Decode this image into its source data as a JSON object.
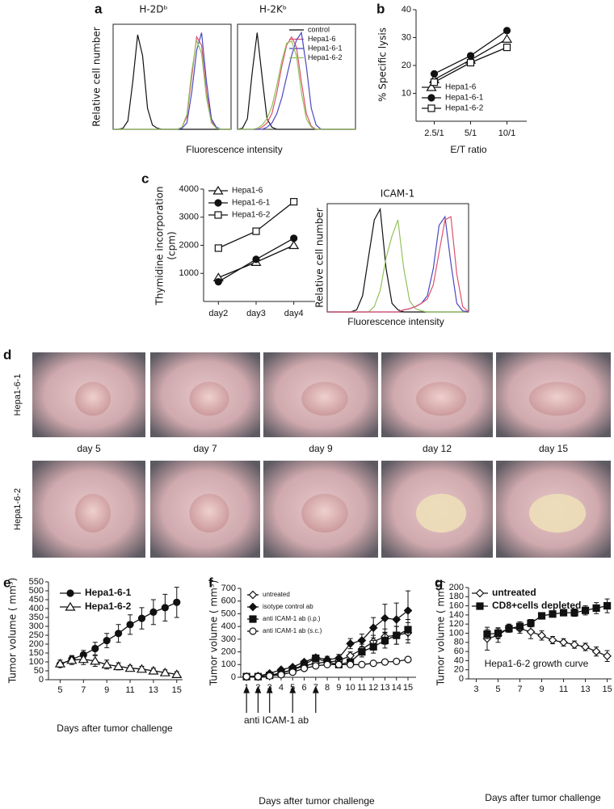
{
  "panel_labels": [
    "a",
    "b",
    "c",
    "d",
    "e",
    "f",
    "g"
  ],
  "photo_panel": {
    "row_labels": [
      "Hepa1-6-1",
      "Hepa1-6-2"
    ],
    "day_labels": [
      "day 5",
      "day 7",
      "day 9",
      "day 12",
      "day 15"
    ]
  },
  "chart_data": [
    {
      "type": "line",
      "title": "H-2Dᵇ",
      "ylabel": "Relative cell number",
      "xlabel": "Fluorescence intensity",
      "x": [
        0,
        1,
        2,
        3,
        4,
        5,
        6,
        7,
        8,
        9,
        10,
        11,
        12,
        13,
        14,
        15,
        16,
        17,
        18,
        19,
        20,
        21,
        22,
        23,
        24
      ],
      "xlim": [
        0,
        24
      ],
      "ylim": [
        0,
        100
      ],
      "series": [
        {
          "color": "#111111",
          "values": [
            0,
            0,
            1,
            8,
            45,
            90,
            70,
            20,
            4,
            1,
            0,
            0,
            0,
            0,
            0,
            0,
            0,
            0,
            0,
            0,
            0,
            0,
            0,
            0,
            0
          ]
        },
        {
          "color": "#e0506e",
          "values": [
            0,
            0,
            0,
            0,
            0,
            0,
            0,
            0,
            0,
            0,
            0,
            0,
            0,
            0,
            2,
            12,
            50,
            88,
            80,
            35,
            8,
            1,
            0,
            0,
            0
          ]
        },
        {
          "color": "#4a48c0",
          "values": [
            0,
            0,
            0,
            0,
            0,
            0,
            0,
            0,
            0,
            0,
            0,
            0,
            0,
            0,
            1,
            6,
            35,
            75,
            92,
            45,
            10,
            2,
            0,
            0,
            0
          ]
        },
        {
          "color": "#92c25a",
          "values": [
            0,
            0,
            0,
            0,
            0,
            0,
            0,
            0,
            0,
            0,
            0,
            0,
            0,
            0,
            2,
            14,
            55,
            85,
            72,
            30,
            6,
            1,
            0,
            0,
            0
          ]
        }
      ]
    },
    {
      "type": "line",
      "title": "H-2Kᵇ",
      "x": [
        0,
        1,
        2,
        3,
        4,
        5,
        6,
        7,
        8,
        9,
        10,
        11,
        12,
        13,
        14,
        15,
        16,
        17,
        18,
        19,
        20,
        21,
        22,
        23,
        24
      ],
      "xlim": [
        0,
        24
      ],
      "ylim": [
        0,
        100
      ],
      "series": [
        {
          "name": "control",
          "color": "#111111",
          "values": [
            0,
            1,
            10,
            55,
            92,
            50,
            10,
            2,
            0,
            0,
            0,
            0,
            0,
            0,
            0,
            0,
            0,
            0,
            0,
            0,
            0,
            0,
            0,
            0,
            0
          ]
        },
        {
          "name": "Hepa1-6",
          "color": "#e0506e",
          "values": [
            0,
            0,
            0,
            0,
            0,
            2,
            6,
            15,
            35,
            60,
            80,
            88,
            78,
            45,
            15,
            3,
            0,
            0,
            0,
            0,
            0,
            0,
            0,
            0,
            0
          ]
        },
        {
          "name": "Hepa1-6-1",
          "color": "#4a48c0",
          "values": [
            0,
            0,
            0,
            0,
            0,
            0,
            2,
            6,
            15,
            30,
            50,
            70,
            85,
            92,
            60,
            20,
            4,
            0,
            0,
            0,
            0,
            0,
            0,
            0,
            0
          ]
        },
        {
          "name": "Hepa1-6-2",
          "color": "#92c25a",
          "values": [
            0,
            0,
            0,
            0,
            1,
            4,
            10,
            22,
            42,
            65,
            82,
            84,
            70,
            35,
            10,
            2,
            0,
            0,
            0,
            0,
            0,
            0,
            0,
            0,
            0
          ]
        }
      ]
    },
    {
      "type": "line",
      "ylabel": "% Specific lysis",
      "xlabel": "E/T ratio",
      "categories": [
        "2.5/1",
        "5/1",
        "10/1"
      ],
      "ylim": [
        0,
        40
      ],
      "yticks": [
        10,
        20,
        30,
        40
      ],
      "series": [
        {
          "name": "Hepa1-6",
          "color": "#111111",
          "marker": "triangle-open",
          "values": [
            15,
            22,
            29.5
          ]
        },
        {
          "name": "Hepa1-6-1",
          "color": "#111111",
          "marker": "circle-filled",
          "values": [
            17,
            23.5,
            32.5
          ]
        },
        {
          "name": "Hepa1-6-2",
          "color": "#111111",
          "marker": "square-open",
          "values": [
            14,
            21,
            26.5
          ]
        }
      ]
    },
    {
      "type": "line",
      "ylabel": [
        "Thymidine incorporation",
        "(cpm)"
      ],
      "categories": [
        "day2",
        "day3",
        "day4"
      ],
      "ylim": [
        0,
        4000
      ],
      "yticks": [
        1000,
        2000,
        3000,
        4000
      ],
      "series": [
        {
          "name": "Hepa1-6",
          "color": "#111111",
          "marker": "triangle-open",
          "values": [
            850,
            1400,
            2000
          ]
        },
        {
          "name": "Hepa1-6-1",
          "color": "#111111",
          "marker": "circle-filled",
          "values": [
            700,
            1500,
            2250
          ]
        },
        {
          "name": "Hepa1-6-2",
          "color": "#111111",
          "marker": "square-open",
          "values": [
            1900,
            2500,
            3550
          ]
        }
      ]
    },
    {
      "type": "line",
      "title": "ICAM-1",
      "ylabel": "Relative cell number",
      "xlabel": "Fluorescence intensity",
      "x": [
        0,
        1,
        2,
        3,
        4,
        5,
        6,
        7,
        8,
        9,
        10,
        11,
        12,
        13,
        14,
        15,
        16,
        17,
        18,
        19,
        20,
        21,
        22,
        23,
        24
      ],
      "xlim": [
        0,
        24
      ],
      "ylim": [
        0,
        100
      ],
      "series": [
        {
          "color": "#111111",
          "values": [
            0,
            0,
            0,
            0,
            0,
            2,
            15,
            50,
            85,
            95,
            40,
            8,
            2,
            0,
            0,
            0,
            0,
            0,
            0,
            0,
            0,
            0,
            0,
            0,
            0
          ]
        },
        {
          "color": "#92c25a",
          "values": [
            0,
            0,
            0,
            0,
            0,
            0,
            0,
            0,
            5,
            20,
            50,
            70,
            85,
            40,
            10,
            3,
            1,
            0,
            0,
            0,
            0,
            0,
            0,
            0,
            0
          ]
        },
        {
          "color": "#4a48c0",
          "values": [
            0,
            0,
            0,
            0,
            0,
            0,
            0,
            0,
            0,
            0,
            0,
            0,
            0,
            2,
            3,
            5,
            8,
            15,
            40,
            80,
            88,
            45,
            8,
            1,
            0
          ]
        },
        {
          "color": "#e0506e",
          "values": [
            0,
            0,
            0,
            0,
            0,
            0,
            0,
            0,
            0,
            0,
            0,
            0,
            0,
            2,
            3,
            5,
            8,
            12,
            25,
            55,
            85,
            88,
            35,
            5,
            0
          ]
        }
      ]
    },
    {
      "type": "line",
      "ylabel": "Tumor volume ( mm³)",
      "xlabel": "Days after tumor challenge",
      "x": [
        5,
        6,
        7,
        8,
        9,
        10,
        11,
        12,
        13,
        14,
        15
      ],
      "xlim": [
        4,
        15.5
      ],
      "xticks": [
        5,
        7,
        9,
        11,
        13,
        15
      ],
      "ylim": [
        0,
        550
      ],
      "yticks": [
        0,
        50,
        100,
        150,
        200,
        250,
        300,
        350,
        400,
        450,
        500,
        550
      ],
      "series": [
        {
          "name": "Hepa1-6-1",
          "color": "#111111",
          "marker": "circle-filled",
          "values": [
            85,
            115,
            140,
            175,
            220,
            260,
            310,
            345,
            380,
            405,
            435
          ],
          "errors": [
            15,
            20,
            25,
            35,
            40,
            50,
            55,
            60,
            70,
            75,
            85
          ]
        },
        {
          "name": "Hepa1-6-2",
          "color": "#111111",
          "marker": "triangle-open",
          "values": [
            90,
            110,
            115,
            105,
            85,
            75,
            65,
            60,
            50,
            40,
            30
          ],
          "errors": [
            20,
            25,
            30,
            30,
            25,
            20,
            15,
            15,
            15,
            15,
            15
          ]
        }
      ]
    },
    {
      "type": "line",
      "ylabel": "Tumor volume ( mm³)",
      "xlabel": "Days after tumor challenge",
      "annotation": "anti ICAM-1 ab",
      "arrows_x": [
        1,
        2,
        3,
        5,
        7
      ],
      "x": [
        1,
        2,
        3,
        4,
        5,
        6,
        7,
        8,
        9,
        10,
        11,
        12,
        13,
        14,
        15
      ],
      "xlim": [
        0.5,
        15.7
      ],
      "xticks": [
        1,
        2,
        3,
        4,
        5,
        6,
        7,
        8,
        9,
        10,
        11,
        12,
        13,
        14,
        15
      ],
      "ylim": [
        0,
        700
      ],
      "yticks": [
        0,
        100,
        200,
        300,
        400,
        500,
        600,
        700
      ],
      "series": [
        {
          "name": "untreated",
          "color": "#111111",
          "marker": "diamond-open",
          "values": [
            5,
            5,
            15,
            30,
            60,
            90,
            110,
            120,
            130,
            170,
            220,
            280,
            320,
            330,
            350
          ],
          "errors": [
            2,
            3,
            5,
            8,
            10,
            15,
            20,
            20,
            25,
            30,
            40,
            50,
            60,
            70,
            80
          ]
        },
        {
          "name": "isotype control ab",
          "color": "#111111",
          "marker": "diamond-filled",
          "values": [
            5,
            10,
            30,
            60,
            80,
            120,
            155,
            140,
            150,
            265,
            290,
            390,
            465,
            455,
            525
          ],
          "errors": [
            2,
            4,
            8,
            10,
            12,
            15,
            20,
            25,
            30,
            40,
            50,
            80,
            110,
            130,
            155
          ]
        },
        {
          "name": "anti ICAM-1 ab (i.p.)",
          "color": "#111111",
          "marker": "square-filled",
          "values": [
            5,
            5,
            15,
            35,
            60,
            100,
            150,
            120,
            100,
            120,
            200,
            240,
            290,
            330,
            375
          ],
          "errors": [
            2,
            3,
            5,
            8,
            10,
            15,
            20,
            20,
            20,
            25,
            40,
            50,
            60,
            70,
            80
          ]
        },
        {
          "name": "anti ICAM-1 ab (s.c.)",
          "color": "#111111",
          "marker": "circle-open",
          "values": [
            5,
            5,
            10,
            20,
            40,
            70,
            90,
            100,
            100,
            100,
            100,
            110,
            120,
            125,
            140
          ],
          "errors": [
            2,
            2,
            4,
            5,
            8,
            10,
            12,
            12,
            12,
            12,
            12,
            12,
            12,
            12,
            12
          ]
        }
      ]
    },
    {
      "type": "line",
      "ylabel": "Tumor volume ( mm³)",
      "xlabel": "Days after tumor challenge",
      "annotation": "Hepa1-6-2 growth curve",
      "x": [
        4,
        5,
        6,
        7,
        8,
        9,
        10,
        11,
        12,
        13,
        14,
        15
      ],
      "xlim": [
        2.3,
        15.4
      ],
      "xticks": [
        3,
        5,
        7,
        9,
        11,
        13,
        15
      ],
      "ylim": [
        0,
        200
      ],
      "yticks": [
        0,
        20,
        40,
        60,
        80,
        100,
        120,
        140,
        160,
        180,
        200
      ],
      "series": [
        {
          "name": "untreated",
          "color": "#111111",
          "marker": "diamond-open",
          "values": [
            88,
            95,
            112,
            110,
            103,
            95,
            85,
            80,
            75,
            70,
            60,
            50
          ],
          "errors": [
            25,
            15,
            8,
            10,
            15,
            10,
            8,
            8,
            8,
            8,
            10,
            12
          ]
        },
        {
          "name": "CD8+cells depleted",
          "color": "#111111",
          "marker": "square-filled",
          "values": [
            98,
            100,
            110,
            115,
            122,
            138,
            142,
            145,
            145,
            150,
            155,
            160
          ],
          "errors": [
            10,
            12,
            8,
            10,
            8,
            5,
            6,
            6,
            8,
            10,
            12,
            15
          ]
        }
      ]
    }
  ]
}
